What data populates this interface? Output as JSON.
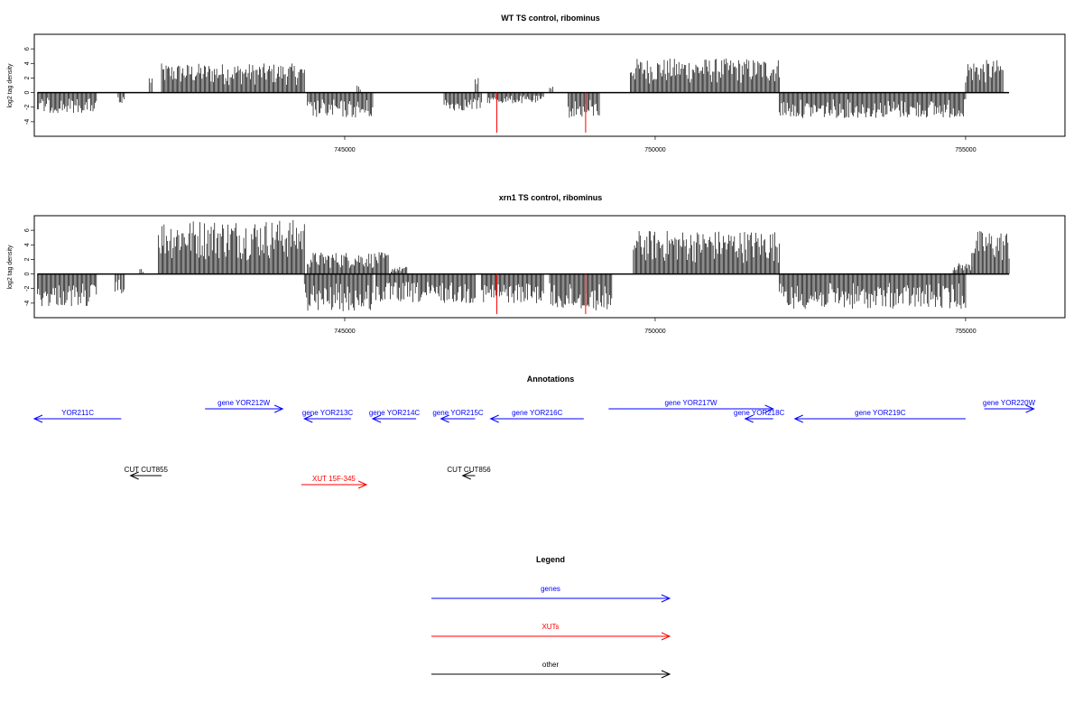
{
  "chart_data": [
    {
      "type": "bar",
      "title": "WT TS control, ribominus",
      "ylabel": "log2 tag density",
      "xlim": [
        740000,
        756600
      ],
      "ylim": [
        -6,
        8
      ],
      "yticks": [
        -4,
        -2,
        0,
        2,
        4,
        6
      ],
      "xticks": [
        745000,
        750000,
        755000
      ],
      "xtick_labels": [
        "745000",
        "750000",
        "755000"
      ],
      "plus_strand_regions": [
        {
          "from": 741850,
          "to": 741900,
          "peak": 2.5
        },
        {
          "from": 742050,
          "to": 744350,
          "peak": 4.0
        },
        {
          "from": 745200,
          "to": 745250,
          "peak": 1.0
        },
        {
          "from": 747100,
          "to": 747150,
          "peak": 2.5
        },
        {
          "from": 748300,
          "to": 748350,
          "peak": 1.0
        },
        {
          "from": 749600,
          "to": 752000,
          "peak": 4.7
        },
        {
          "from": 755000,
          "to": 755600,
          "peak": 4.5
        }
      ],
      "minus_strand_regions": [
        {
          "from": 740050,
          "to": 741000,
          "peak": -2.8
        },
        {
          "from": 741350,
          "to": 741450,
          "peak": -1.8
        },
        {
          "from": 744400,
          "to": 745450,
          "peak": -3.5
        },
        {
          "from": 746600,
          "to": 747200,
          "peak": -2.5
        },
        {
          "from": 747300,
          "to": 748200,
          "peak": -1.5
        },
        {
          "from": 748600,
          "to": 749100,
          "peak": -3.5
        },
        {
          "from": 752000,
          "to": 755000,
          "peak": -3.5
        }
      ],
      "highlight_lines": [
        {
          "x": 747450,
          "y": -5.5
        },
        {
          "x": 748880,
          "y": -5.5
        }
      ]
    },
    {
      "type": "bar",
      "title": "xrn1 TS control, ribominus",
      "ylabel": "log2 tag density",
      "xlim": [
        740000,
        756600
      ],
      "ylim": [
        -6,
        8
      ],
      "yticks": [
        -4,
        -2,
        0,
        2,
        4,
        6
      ],
      "xticks": [
        745000,
        750000,
        755000
      ],
      "xtick_labels": [
        "745000",
        "750000",
        "755000"
      ],
      "plus_strand_regions": [
        {
          "from": 741700,
          "to": 741750,
          "peak": 1.0
        },
        {
          "from": 742000,
          "to": 744350,
          "peak": 7.5
        },
        {
          "from": 744400,
          "to": 745700,
          "peak": 3.0
        },
        {
          "from": 745750,
          "to": 746000,
          "peak": 1.0
        },
        {
          "from": 749650,
          "to": 752000,
          "peak": 6.0
        },
        {
          "from": 754800,
          "to": 755100,
          "peak": 1.5
        },
        {
          "from": 755100,
          "to": 755700,
          "peak": 6.0
        }
      ],
      "minus_strand_regions": [
        {
          "from": 740050,
          "to": 741000,
          "peak": -4.5
        },
        {
          "from": 741300,
          "to": 741450,
          "peak": -2.8
        },
        {
          "from": 744350,
          "to": 745450,
          "peak": -5.2
        },
        {
          "from": 745500,
          "to": 747100,
          "peak": -4.0
        },
        {
          "from": 747200,
          "to": 748200,
          "peak": -4.0
        },
        {
          "from": 748300,
          "to": 749300,
          "peak": -5.0
        },
        {
          "from": 752000,
          "to": 755000,
          "peak": -4.8
        }
      ],
      "highlight_lines": [
        {
          "x": 747450,
          "y": -5.5
        },
        {
          "x": 748880,
          "y": -5.5
        }
      ]
    }
  ],
  "annotations": {
    "title": "Annotations",
    "xlim": [
      740000,
      756600
    ],
    "features": [
      {
        "label": "YOR211C",
        "from": 740000,
        "to": 741400,
        "strand": "-",
        "row": 2,
        "color": "#0000ff"
      },
      {
        "label": "gene YOR212W",
        "from": 742750,
        "to": 744000,
        "strand": "+",
        "row": 1,
        "color": "#0000ff"
      },
      {
        "label": "gene YOR213C",
        "from": 744350,
        "to": 745100,
        "strand": "-",
        "row": 2,
        "color": "#0000ff"
      },
      {
        "label": "gene YOR214C",
        "from": 745450,
        "to": 746150,
        "strand": "-",
        "row": 2,
        "color": "#0000ff"
      },
      {
        "label": "gene YOR215C",
        "from": 746550,
        "to": 747100,
        "strand": "-",
        "row": 2,
        "color": "#0000ff"
      },
      {
        "label": "gene YOR216C",
        "from": 747350,
        "to": 748850,
        "strand": "-",
        "row": 2,
        "color": "#0000ff"
      },
      {
        "label": "gene YOR217W",
        "from": 749250,
        "to": 751900,
        "strand": "+",
        "row": 1,
        "color": "#0000ff"
      },
      {
        "label": "gene YOR218C",
        "from": 751450,
        "to": 751900,
        "strand": "-",
        "row": 2,
        "color": "#0000ff"
      },
      {
        "label": "gene YOR219C",
        "from": 752250,
        "to": 755000,
        "strand": "-",
        "row": 2,
        "color": "#0000ff"
      },
      {
        "label": "gene YOR220W",
        "from": 755300,
        "to": 756100,
        "strand": "+",
        "row": 1,
        "color": "#0000ff"
      },
      {
        "label": "CUT CUT855",
        "from": 741550,
        "to": 742050,
        "strand": "-",
        "row": 3,
        "color": "#000000"
      },
      {
        "label": "XUT 15F-345",
        "from": 744300,
        "to": 745350,
        "strand": "+",
        "row": 4,
        "color": "#ff0000"
      },
      {
        "label": "CUT CUT856",
        "from": 746900,
        "to": 747100,
        "strand": "-",
        "row": 3,
        "color": "#000000"
      }
    ]
  },
  "legend": {
    "title": "Legend",
    "entries": [
      {
        "label": "genes",
        "color": "#0000ff"
      },
      {
        "label": "XUTs",
        "color": "#ff0000"
      },
      {
        "label": "other",
        "color": "#000000"
      }
    ]
  },
  "colors": {
    "bars": "#000000",
    "highlight": "#ff0000",
    "gene": "#0000ff",
    "xut": "#ff0000",
    "other": "#000000"
  }
}
